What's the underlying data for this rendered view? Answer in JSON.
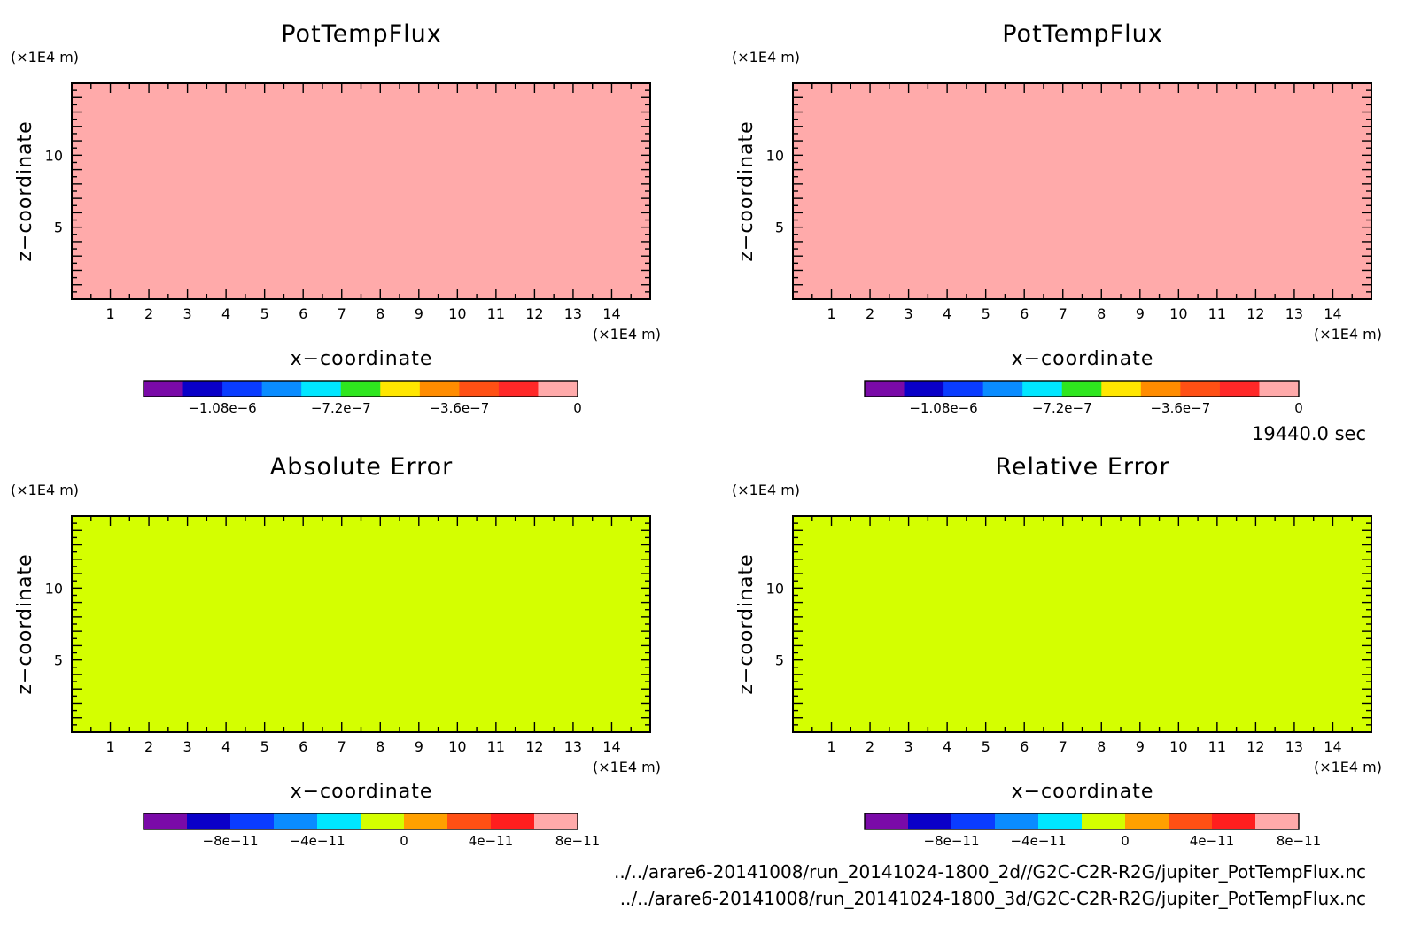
{
  "time_label": "19440.0 sec",
  "file_paths": [
    "../../arare6-20141008/run_20141024-1800_2d//G2C-C2R-R2G/jupiter_PotTempFlux.nc",
    "../../arare6-20141008/run_20141024-1800_3d/G2C-C2R-R2G/jupiter_PotTempFlux.nc"
  ],
  "chart_data": [
    {
      "type": "heatmap",
      "title": "PotTempFlux",
      "xlabel": "x−coordinate",
      "ylabel": "z−coordinate",
      "x_unit": "(×1E4 m)",
      "y_unit": "(×1E4 m)",
      "xlim": [
        0,
        15
      ],
      "ylim": [
        0,
        15
      ],
      "xticks": [
        "1",
        "2",
        "3",
        "4",
        "5",
        "6",
        "7",
        "8",
        "9",
        "10",
        "11",
        "12",
        "13",
        "14"
      ],
      "yticks": [
        "5",
        "10"
      ],
      "field_value": 0,
      "fill_color": "#ffaaaa",
      "colorbar": {
        "colors": [
          "#7a0aa8",
          "#0a00c8",
          "#0a3cff",
          "#0a8cff",
          "#00e6ff",
          "#2ee61e",
          "#ffe600",
          "#ff8c00",
          "#ff5014",
          "#ff2828",
          "#ffaaaa"
        ],
        "labels": [
          "−1.08e−6",
          "−7.2e−7",
          "−3.6e−7",
          "0"
        ]
      }
    },
    {
      "type": "heatmap",
      "title": "PotTempFlux",
      "xlabel": "x−coordinate",
      "ylabel": "z−coordinate",
      "x_unit": "(×1E4 m)",
      "y_unit": "(×1E4 m)",
      "xlim": [
        0,
        15
      ],
      "ylim": [
        0,
        15
      ],
      "xticks": [
        "1",
        "2",
        "3",
        "4",
        "5",
        "6",
        "7",
        "8",
        "9",
        "10",
        "11",
        "12",
        "13",
        "14"
      ],
      "yticks": [
        "5",
        "10"
      ],
      "field_value": 0,
      "fill_color": "#ffaaaa",
      "colorbar": {
        "colors": [
          "#7a0aa8",
          "#0a00c8",
          "#0a3cff",
          "#0a8cff",
          "#00e6ff",
          "#2ee61e",
          "#ffe600",
          "#ff8c00",
          "#ff5014",
          "#ff2828",
          "#ffaaaa"
        ],
        "labels": [
          "−1.08e−6",
          "−7.2e−7",
          "−3.6e−7",
          "0"
        ]
      }
    },
    {
      "type": "heatmap",
      "title": "Absolute Error",
      "xlabel": "x−coordinate",
      "ylabel": "z−coordinate",
      "x_unit": "(×1E4 m)",
      "y_unit": "(×1E4 m)",
      "xlim": [
        0,
        15
      ],
      "ylim": [
        0,
        15
      ],
      "xticks": [
        "1",
        "2",
        "3",
        "4",
        "5",
        "6",
        "7",
        "8",
        "9",
        "10",
        "11",
        "12",
        "13",
        "14"
      ],
      "yticks": [
        "5",
        "10"
      ],
      "field_value": 0,
      "fill_color": "#d4ff00",
      "colorbar": {
        "colors": [
          "#7a0aa8",
          "#0a00c8",
          "#0a3cff",
          "#0a8cff",
          "#00e6ff",
          "#d4ff00",
          "#ffa000",
          "#ff5014",
          "#ff1e1e",
          "#ffaaaa"
        ],
        "labels": [
          "−8e−11",
          "−4e−11",
          "0",
          "4e−11",
          "8e−11"
        ]
      }
    },
    {
      "type": "heatmap",
      "title": "Relative Error",
      "xlabel": "x−coordinate",
      "ylabel": "z−coordinate",
      "x_unit": "(×1E4 m)",
      "y_unit": "(×1E4 m)",
      "xlim": [
        0,
        15
      ],
      "ylim": [
        0,
        15
      ],
      "xticks": [
        "1",
        "2",
        "3",
        "4",
        "5",
        "6",
        "7",
        "8",
        "9",
        "10",
        "11",
        "12",
        "13",
        "14"
      ],
      "yticks": [
        "5",
        "10"
      ],
      "field_value": 0,
      "fill_color": "#d4ff00",
      "colorbar": {
        "colors": [
          "#7a0aa8",
          "#0a00c8",
          "#0a3cff",
          "#0a8cff",
          "#00e6ff",
          "#d4ff00",
          "#ffa000",
          "#ff5014",
          "#ff1e1e",
          "#ffaaaa"
        ],
        "labels": [
          "−8e−11",
          "−4e−11",
          "0",
          "4e−11",
          "8e−11"
        ]
      }
    }
  ]
}
